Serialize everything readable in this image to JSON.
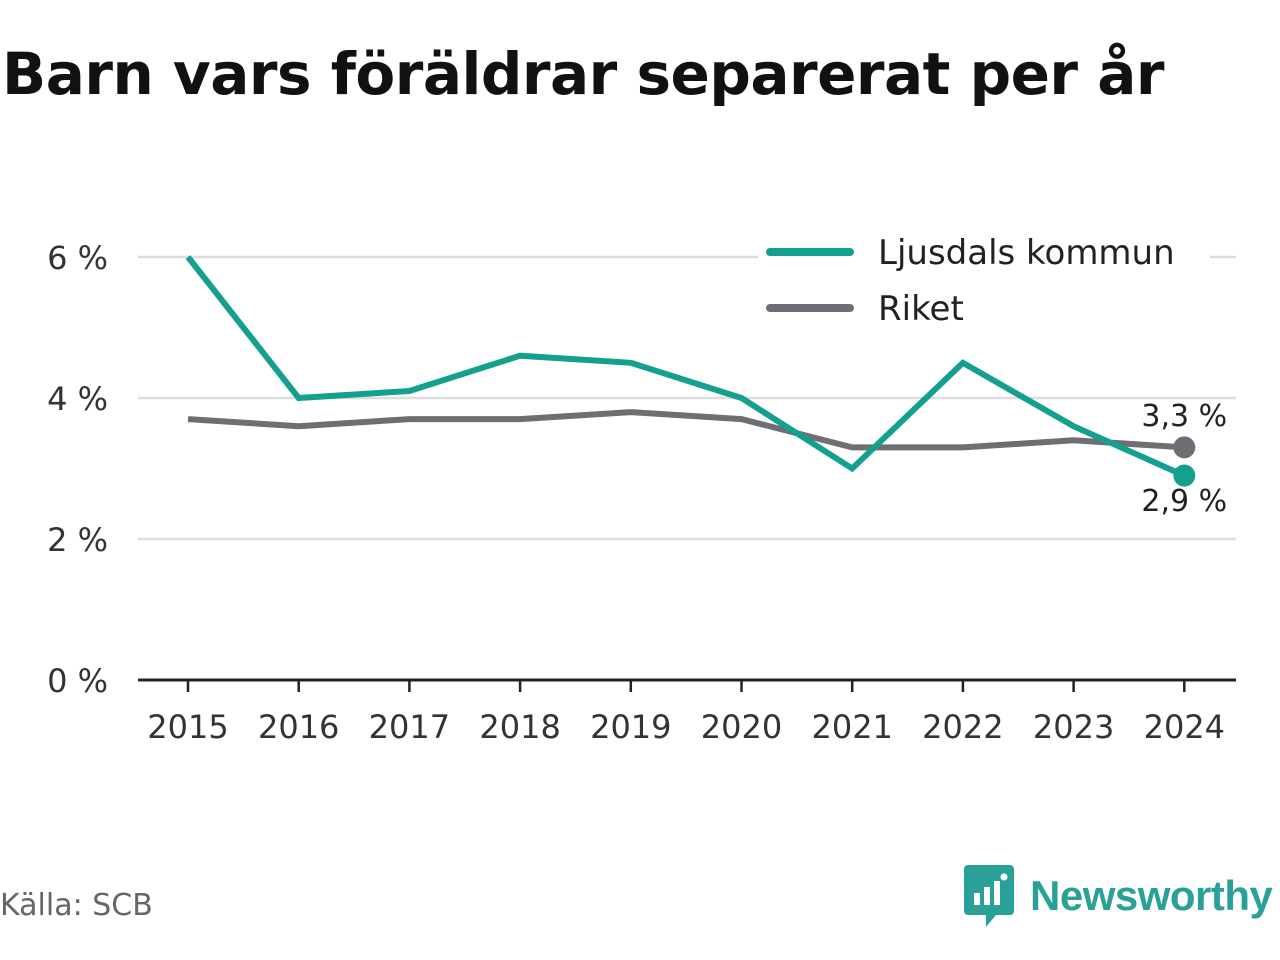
{
  "title": "Barn vars föräldrar separerat per år",
  "source": "Källa: SCB",
  "brand": {
    "name": "Newsworthy",
    "icon": "newsworthy-logo-icon",
    "color": "#2aa198"
  },
  "colors": {
    "primary": "#14a08f",
    "secondary": "#6f6e74",
    "grid": "#dddddd",
    "axis": "#222222"
  },
  "chart_data": {
    "type": "line",
    "x": [
      "2015",
      "2016",
      "2017",
      "2018",
      "2019",
      "2020",
      "2021",
      "2022",
      "2023",
      "2024"
    ],
    "series": [
      {
        "name": "Ljusdals kommun",
        "color": "#14a08f",
        "values": [
          6.0,
          4.0,
          4.1,
          4.6,
          4.5,
          4.0,
          3.0,
          4.5,
          3.6,
          2.9
        ]
      },
      {
        "name": "Riket",
        "color": "#6f6e74",
        "values": [
          3.7,
          3.6,
          3.7,
          3.7,
          3.8,
          3.7,
          3.3,
          3.3,
          3.4,
          3.3
        ]
      }
    ],
    "yticks": [
      "0 %",
      "2 %",
      "4 %",
      "6 %"
    ],
    "ytick_values": [
      0,
      2,
      4,
      6
    ],
    "ylim": [
      0,
      6
    ],
    "end_labels": [
      "2,9 %",
      "3,3 %"
    ],
    "legend_position": "top-right",
    "grid": true
  }
}
